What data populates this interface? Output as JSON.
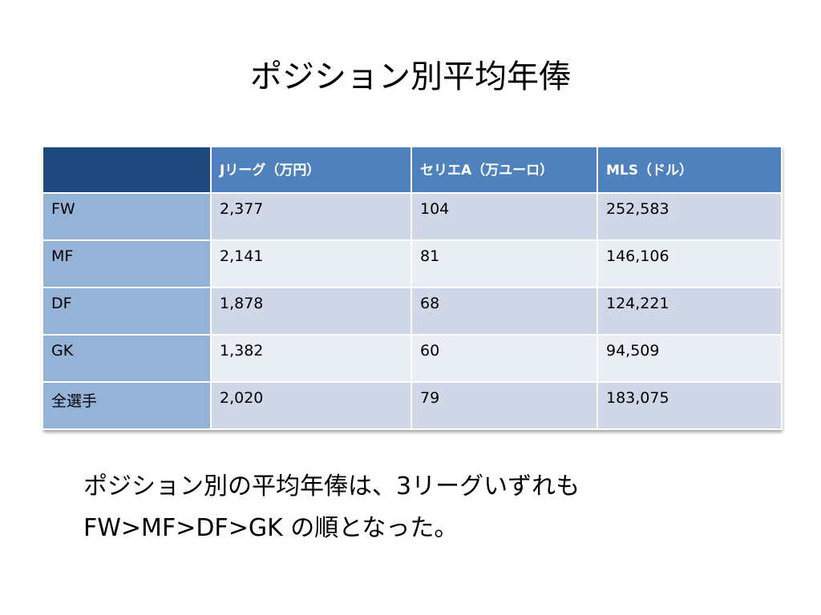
{
  "title": "ポジション別平均年俸",
  "table": {
    "headers": [
      "",
      "Jリーグ（万円）",
      "セリエA（万ユーロ）",
      "MLS（ドル）"
    ],
    "rows": [
      [
        "FW",
        "2,377",
        "104",
        "252,583"
      ],
      [
        "MF",
        "2,141",
        "81",
        "146,106"
      ],
      [
        "DF",
        "1,878",
        "68",
        "124,221"
      ],
      [
        "GK",
        "1,382",
        "60",
        "94,509"
      ],
      [
        "全選手",
        "2,020",
        "79",
        "183,075"
      ]
    ]
  },
  "body": {
    "line1": "ポジション別の平均年俸は、3リーグいずれも",
    "line2": "FW>MF>DF>GK の順となった。"
  },
  "colors": {
    "header": "#4f81bd",
    "corner": "#1f497d",
    "row_header": "#95b3d7",
    "row_a": "#d0d8e8",
    "row_b": "#e9edf4"
  }
}
